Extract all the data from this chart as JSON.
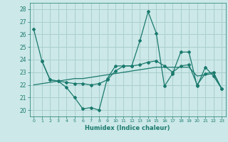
{
  "xlabel": "Humidex (Indice chaleur)",
  "bg_color": "#cce8e8",
  "grid_color": "#aacfcf",
  "line_color": "#1a7a6e",
  "x_ticks": [
    0,
    1,
    2,
    3,
    4,
    5,
    6,
    7,
    8,
    9,
    10,
    11,
    12,
    13,
    14,
    15,
    16,
    17,
    18,
    19,
    20,
    21,
    22,
    23
  ],
  "ylim": [
    19.5,
    28.5
  ],
  "xlim": [
    -0.5,
    23.5
  ],
  "yticks": [
    20,
    21,
    22,
    23,
    24,
    25,
    26,
    27,
    28
  ],
  "line1_x": [
    0,
    1,
    2,
    3,
    4,
    5,
    6,
    7,
    8,
    9,
    10,
    11,
    12,
    13,
    14,
    15,
    16,
    17,
    18,
    19,
    20,
    21,
    22,
    23
  ],
  "line1_y": [
    26.4,
    23.9,
    22.4,
    22.3,
    21.8,
    21.0,
    20.1,
    20.2,
    20.0,
    22.5,
    23.5,
    23.5,
    23.5,
    25.5,
    27.8,
    26.1,
    21.9,
    22.9,
    24.6,
    24.6,
    21.9,
    23.4,
    22.7,
    21.7
  ],
  "line2_x": [
    1,
    2,
    3,
    4,
    5,
    6,
    7,
    8,
    9,
    10,
    11,
    12,
    13,
    14,
    15,
    16,
    17,
    18,
    19,
    20,
    21,
    22,
    23
  ],
  "line2_y": [
    23.9,
    22.4,
    22.3,
    22.2,
    22.1,
    22.1,
    22.0,
    22.1,
    22.4,
    23.1,
    23.5,
    23.5,
    23.6,
    23.8,
    23.9,
    23.5,
    23.0,
    23.5,
    23.6,
    22.0,
    22.9,
    23.0,
    21.7
  ],
  "line3_x": [
    0,
    1,
    2,
    3,
    4,
    5,
    6,
    7,
    8,
    9,
    10,
    11,
    12,
    13,
    14,
    15,
    16,
    17,
    18,
    19,
    20,
    21,
    22,
    23
  ],
  "line3_y": [
    22.0,
    22.1,
    22.2,
    22.3,
    22.4,
    22.5,
    22.5,
    22.6,
    22.7,
    22.8,
    22.9,
    23.0,
    23.1,
    23.2,
    23.3,
    23.4,
    23.4,
    23.4,
    23.4,
    23.4,
    22.7,
    22.8,
    22.9,
    21.7
  ]
}
